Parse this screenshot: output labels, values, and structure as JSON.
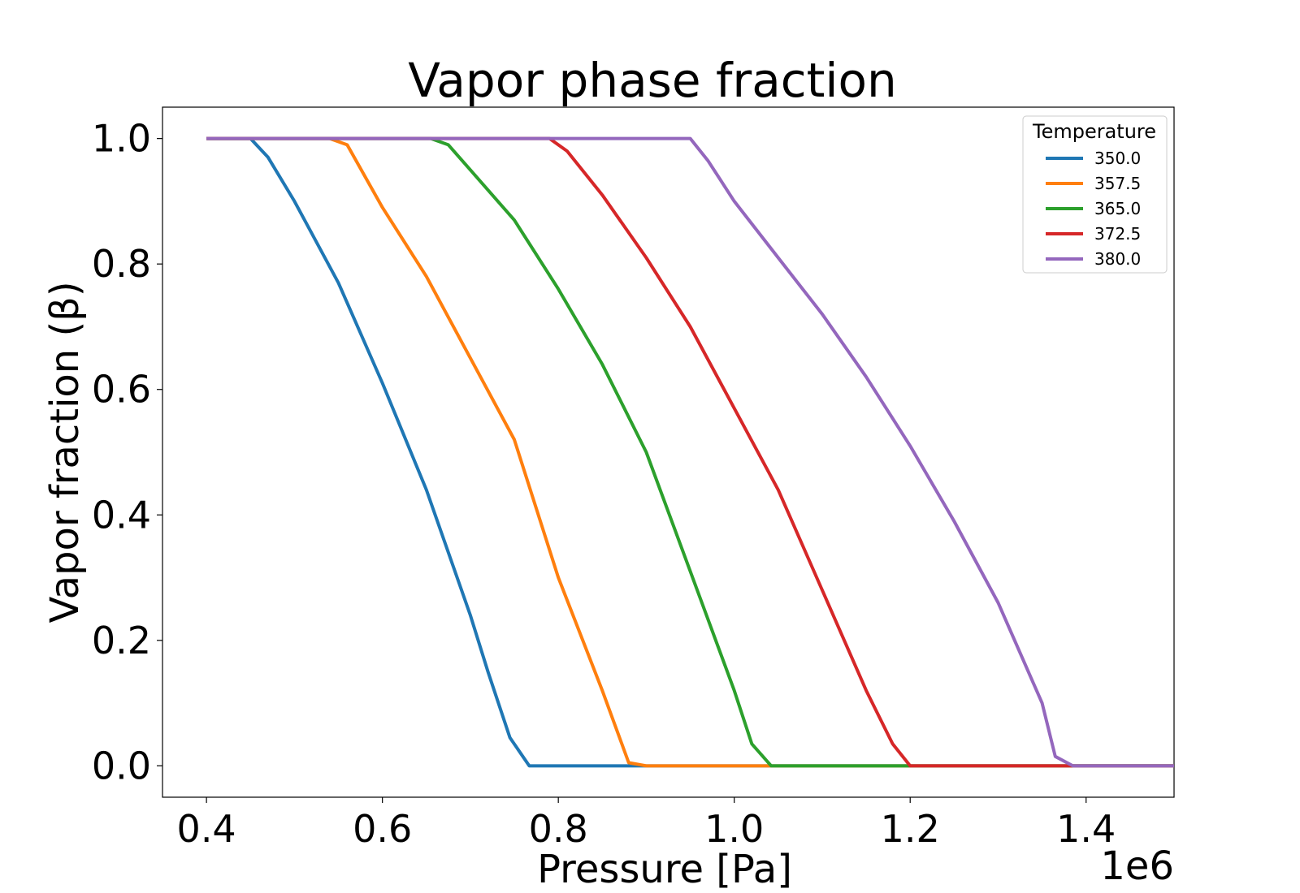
{
  "chart_data": {
    "type": "line",
    "title": "Vapor phase fraction",
    "xlabel": "Pressure [Pa]",
    "ylabel": "Vapor fraction (β)",
    "x_offset_label": "1e6",
    "xlim": [
      0.35,
      1.5
    ],
    "ylim": [
      -0.05,
      1.05
    ],
    "x_ticks": [
      0.4,
      0.6,
      0.8,
      1.0,
      1.2,
      1.4
    ],
    "x_tick_labels": [
      "0.4",
      "0.6",
      "0.8",
      "1.0",
      "1.2",
      "1.4"
    ],
    "y_ticks": [
      0.0,
      0.2,
      0.4,
      0.6,
      0.8,
      1.0
    ],
    "y_tick_labels": [
      "0.0",
      "0.2",
      "0.4",
      "0.6",
      "0.8",
      "1.0"
    ],
    "grid": false,
    "legend": {
      "title": "Temperature",
      "placement": "top-right"
    },
    "series": [
      {
        "name": "350.0",
        "color": "#1f77b4",
        "x": [
          0.4,
          0.45,
          0.47,
          0.5,
          0.55,
          0.6,
          0.65,
          0.7,
          0.72,
          0.745,
          0.767,
          0.8,
          0.9,
          1.0,
          1.1,
          1.2,
          1.3,
          1.4,
          1.5
        ],
        "y": [
          1.0,
          1.0,
          0.97,
          0.9,
          0.77,
          0.61,
          0.44,
          0.24,
          0.15,
          0.045,
          0.0,
          0.0,
          0.0,
          0.0,
          0.0,
          0.0,
          0.0,
          0.0,
          0.0
        ]
      },
      {
        "name": "357.5",
        "color": "#ff7f0e",
        "x": [
          0.4,
          0.5,
          0.54,
          0.56,
          0.6,
          0.65,
          0.7,
          0.75,
          0.8,
          0.85,
          0.88,
          0.9,
          1.0,
          1.1,
          1.2,
          1.3,
          1.4,
          1.5
        ],
        "y": [
          1.0,
          1.0,
          1.0,
          0.99,
          0.89,
          0.78,
          0.65,
          0.52,
          0.3,
          0.12,
          0.005,
          0.0,
          0.0,
          0.0,
          0.0,
          0.0,
          0.0,
          0.0
        ]
      },
      {
        "name": "365.0",
        "color": "#2ca02c",
        "x": [
          0.4,
          0.6,
          0.655,
          0.675,
          0.7,
          0.75,
          0.8,
          0.85,
          0.9,
          0.95,
          1.0,
          1.02,
          1.042,
          1.1,
          1.2,
          1.3,
          1.4,
          1.5
        ],
        "y": [
          1.0,
          1.0,
          1.0,
          0.99,
          0.95,
          0.87,
          0.76,
          0.64,
          0.5,
          0.31,
          0.12,
          0.035,
          0.0,
          0.0,
          0.0,
          0.0,
          0.0,
          0.0
        ]
      },
      {
        "name": "372.5",
        "color": "#d62728",
        "x": [
          0.4,
          0.7,
          0.79,
          0.81,
          0.85,
          0.9,
          0.95,
          1.0,
          1.05,
          1.1,
          1.15,
          1.18,
          1.2,
          1.3,
          1.4,
          1.5
        ],
        "y": [
          1.0,
          1.0,
          1.0,
          0.98,
          0.91,
          0.81,
          0.7,
          0.57,
          0.44,
          0.28,
          0.12,
          0.035,
          0.0,
          0.0,
          0.0,
          0.0
        ]
      },
      {
        "name": "380.0",
        "color": "#9467bd",
        "x": [
          0.4,
          0.8,
          0.95,
          0.97,
          1.0,
          1.05,
          1.1,
          1.15,
          1.2,
          1.25,
          1.3,
          1.35,
          1.365,
          1.385,
          1.4,
          1.5
        ],
        "y": [
          1.0,
          1.0,
          1.0,
          0.965,
          0.9,
          0.81,
          0.72,
          0.62,
          0.51,
          0.39,
          0.26,
          0.1,
          0.015,
          0.0,
          0.0,
          0.0
        ]
      }
    ]
  }
}
